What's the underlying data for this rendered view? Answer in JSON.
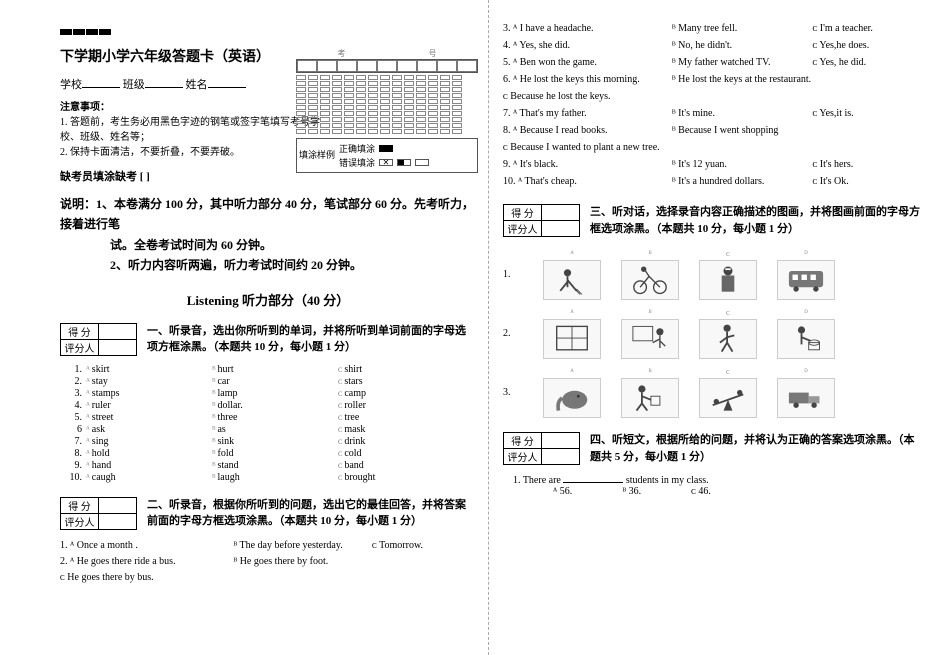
{
  "header": {
    "title": "下学期小学六年级答题卡（英语）",
    "school_label": "学校",
    "class_label": "班级",
    "name_label": "姓名",
    "grid_col1": "考",
    "grid_col2": "号",
    "fill_frame_label": "填涂样例",
    "fill_correct": "正确填涂",
    "fill_wrong": "错误填涂"
  },
  "notes": {
    "title": "注意事项：",
    "n1": "1. 答题前，考生务必用黑色字迹的钢笔或签字笔填写考号学校、班级、姓名等；",
    "n2": "2. 保持卡面清洁，不要折叠，不要弄破。"
  },
  "absent": "缺考员填涂缺考  [  ]",
  "instructions": {
    "line1": "说明：1、本卷满分 100 分，其中听力部分 40 分，笔试部分 60 分。先考听力，接着进行笔",
    "line1b": "试。全卷考试时间为 60 分钟。",
    "line2": "2、听力内容听两遍，听力考试时间约 20 分钟。"
  },
  "listening_title": "Listening 听力部分（40 分）",
  "score": {
    "score_label": "得 分",
    "grader_label": "评分人"
  },
  "s1": {
    "prompt": "一、听录音，选出你所听到的单词，并将所听到单词前面的字母选项方框涂黑。（本题共 10 分，每小题 1 分）",
    "rows": [
      {
        "n": "1.",
        "a": "skirt",
        "b": "hurt",
        "c": "shirt"
      },
      {
        "n": "2.",
        "a": "stay",
        "b": "car",
        "c": "stars"
      },
      {
        "n": "3.",
        "a": "stamps",
        "b": "lamp",
        "c": "camp"
      },
      {
        "n": "4.",
        "a": "ruler",
        "b": "dollar.",
        "c": "roller"
      },
      {
        "n": "5.",
        "a": "street",
        "b": "three",
        "c": "tree"
      },
      {
        "n": "6",
        "a": "ask",
        "b": "as",
        "c": "mask"
      },
      {
        "n": "7.",
        "a": "sing",
        "b": "sink",
        "c": "drink"
      },
      {
        "n": "8.",
        "a": "hold",
        "b": "fold",
        "c": "cold"
      },
      {
        "n": "9.",
        "a": "hand",
        "b": "stand",
        "c": "band"
      },
      {
        "n": "10.",
        "a": "caugh",
        "b": "laugh",
        "c": "brought"
      }
    ]
  },
  "s2": {
    "prompt": "二、听录音，根据你所听到的问题，选出它的最佳回答，并将答案前面的字母方框选项涂黑。（本题共 10 分，每小题 1 分）",
    "leftRows": [
      {
        "pre": "1. ᴬ",
        "a": "Once a month .",
        "b": "ᴮ   The day before yesterday.",
        "c": "ᴄ   Tomorrow."
      },
      {
        "pre": "2. ᴬ",
        "a": "He goes there ride a bus.",
        "b": "ᴮ   He goes there by foot.",
        "c": ""
      },
      {
        "pre": "   ᴄ",
        "a": "He goes there by bus.",
        "b": "",
        "c": ""
      }
    ]
  },
  "rightTop": [
    {
      "pre": "3. ᴬ",
      "a": "I have a headache.",
      "b": "ᴮ  Many tree fell.",
      "c": "ᴄ  I'm a teacher."
    },
    {
      "pre": "4. ᴬ",
      "a": "Yes, she did.",
      "b": "ᴮ   No, he didn't.",
      "c": "ᴄ   Yes,he does."
    },
    {
      "pre": "5. ᴬ",
      "a": "Ben won the game.",
      "b": "ᴮ  My father watched TV.",
      "c": "ᴄ  Yes, he did."
    },
    {
      "pre": "6. ᴬ",
      "a": "He lost the keys this morning.",
      "b": "ᴮ  He lost the keys at the restaurant.",
      "c": ""
    },
    {
      "pre": "   ᴄ",
      "a": "Because he lost the keys.",
      "b": "",
      "c": ""
    },
    {
      "pre": "7. ᴬ",
      "a": "That's my father.",
      "b": "ᴮ   It's mine.",
      "c": "ᴄ  Yes,it is."
    },
    {
      "pre": "8. ᴬ",
      "a": "Because I read books.",
      "b": "ᴮ   Because I went shopping",
      "c": ""
    },
    {
      "pre": "   ᴄ",
      "a": "Because I wanted to plant a new tree.",
      "b": "",
      "c": ""
    },
    {
      "pre": "9. ᴬ",
      "a": "It's black.",
      "b": "ᴮ  It's 12 yuan.",
      "c": "ᴄ  It's hers."
    },
    {
      "pre": "10. ᴬ",
      "a": "That's cheap.",
      "b": "ᴮ   It's a hundred dollars.",
      "c": "ᴄ  It's Ok."
    }
  ],
  "s3": {
    "prompt": "三、听对话，选择录音内容正确描述的图画，并将图画前面的字母方框选项涂黑。（本题共 10 分，每小题 1 分）",
    "rows": [
      {
        "n": "1.",
        "icons": [
          "sweep",
          "bike",
          "nurse",
          "bus"
        ]
      },
      {
        "n": "2.",
        "icons": [
          "window",
          "teacher",
          "walk",
          "cook"
        ]
      },
      {
        "n": "3.",
        "icons": [
          "elephant",
          "push",
          "seesaw",
          "truck"
        ]
      }
    ]
  },
  "s4": {
    "prompt": "四、听短文，根据所给的问题，并将认为正确的答案选项涂黑。（本题共 5 分，每小题 1 分）",
    "q1": "1.  There  are",
    "q1b": "students  in  my  class.",
    "opts": {
      "a": "ᴬ  56.",
      "b": "ᴮ  36.",
      "c": "ᴄ  46."
    }
  },
  "colors": {
    "text": "#000000",
    "light": "#888888",
    "border": "#555555",
    "bg": "#ffffff"
  }
}
